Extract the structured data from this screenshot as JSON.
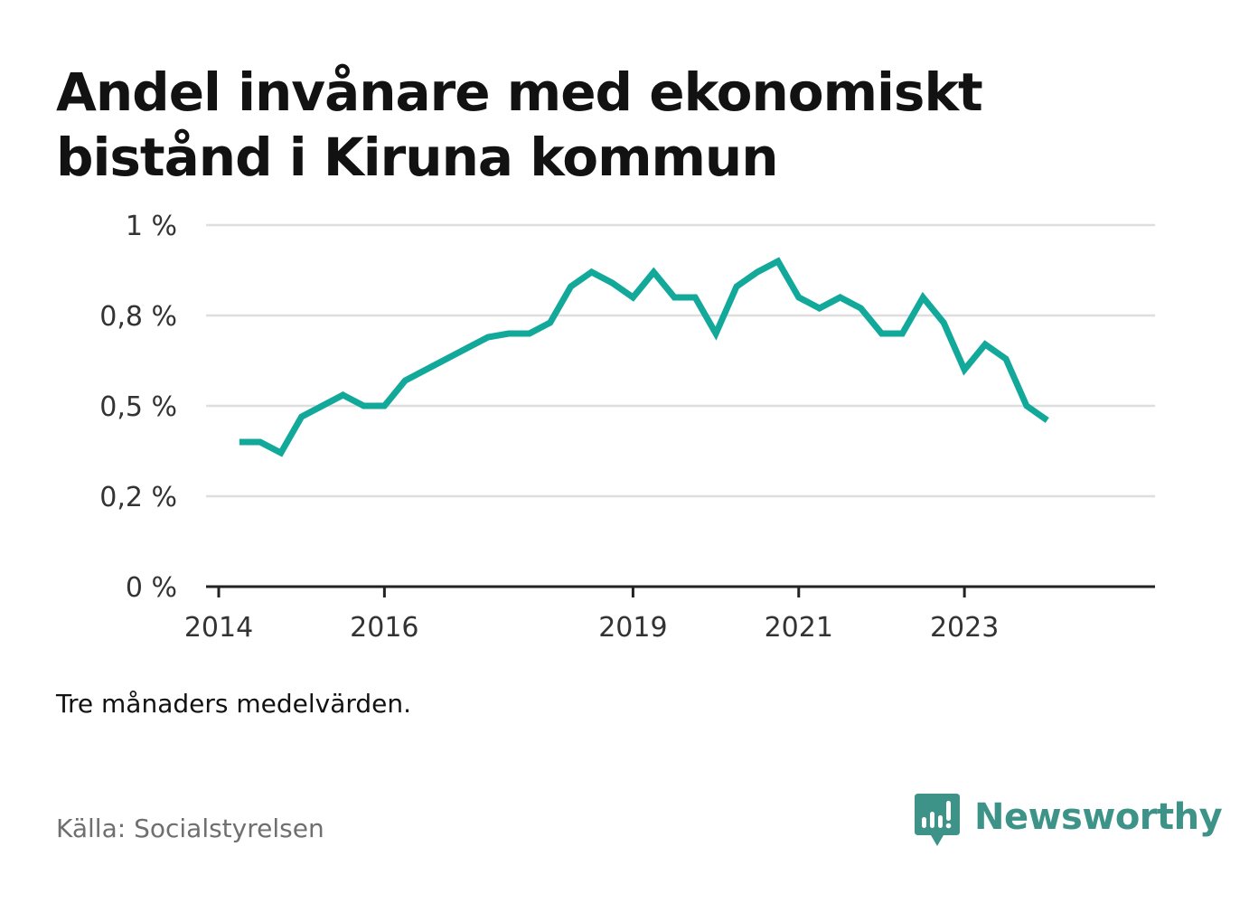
{
  "title_lines": [
    "Andel invånare med ekonomiskt",
    "bistånd i Kiruna kommun"
  ],
  "note": "Tre månaders medelvärden.",
  "source": "Källa: Socialstyrelsen",
  "brand": {
    "name": "Newsworthy",
    "icon": "newsworthy-logo-icon",
    "color": "#3e9389"
  },
  "chart_data": {
    "type": "line",
    "title": "Andel invånare med ekonomiskt bistånd i Kiruna kommun",
    "xlabel": "",
    "ylabel": "",
    "ylim": [
      0,
      1.0
    ],
    "grid": true,
    "y_ticks": [
      {
        "value": 0,
        "label": "0 %"
      },
      {
        "value": 0.25,
        "label": "0,2 %"
      },
      {
        "value": 0.5,
        "label": "0,5 %"
      },
      {
        "value": 0.75,
        "label": "0,8 %"
      },
      {
        "value": 1.0,
        "label": "1 %"
      }
    ],
    "x_ticks": [
      {
        "value": 2014.0,
        "label": "2014"
      },
      {
        "value": 2016.0,
        "label": "2016"
      },
      {
        "value": 2019.0,
        "label": "2019"
      },
      {
        "value": 2021.0,
        "label": "2021"
      },
      {
        "value": 2023.0,
        "label": "2023"
      }
    ],
    "xlim": [
      2014.0,
      2025.3
    ],
    "line_color": "#12a89a",
    "series": [
      {
        "values": [
          {
            "x": 2014.25,
            "y": 0.4
          },
          {
            "x": 2014.5,
            "y": 0.4
          },
          {
            "x": 2014.75,
            "y": 0.37
          },
          {
            "x": 2015.0,
            "y": 0.47
          },
          {
            "x": 2015.25,
            "y": 0.5
          },
          {
            "x": 2015.5,
            "y": 0.53
          },
          {
            "x": 2015.75,
            "y": 0.5
          },
          {
            "x": 2016.0,
            "y": 0.5
          },
          {
            "x": 2016.25,
            "y": 0.57
          },
          {
            "x": 2016.5,
            "y": 0.6
          },
          {
            "x": 2016.75,
            "y": 0.63
          },
          {
            "x": 2017.0,
            "y": 0.66
          },
          {
            "x": 2017.25,
            "y": 0.69
          },
          {
            "x": 2017.5,
            "y": 0.7
          },
          {
            "x": 2017.75,
            "y": 0.7
          },
          {
            "x": 2018.0,
            "y": 0.73
          },
          {
            "x": 2018.25,
            "y": 0.83
          },
          {
            "x": 2018.5,
            "y": 0.87
          },
          {
            "x": 2018.75,
            "y": 0.84
          },
          {
            "x": 2019.0,
            "y": 0.8
          },
          {
            "x": 2019.25,
            "y": 0.87
          },
          {
            "x": 2019.5,
            "y": 0.8
          },
          {
            "x": 2019.75,
            "y": 0.8
          },
          {
            "x": 2020.0,
            "y": 0.7
          },
          {
            "x": 2020.25,
            "y": 0.83
          },
          {
            "x": 2020.5,
            "y": 0.87
          },
          {
            "x": 2020.75,
            "y": 0.9
          },
          {
            "x": 2021.0,
            "y": 0.8
          },
          {
            "x": 2021.25,
            "y": 0.77
          },
          {
            "x": 2021.5,
            "y": 0.8
          },
          {
            "x": 2021.75,
            "y": 0.77
          },
          {
            "x": 2022.0,
            "y": 0.7
          },
          {
            "x": 2022.25,
            "y": 0.7
          },
          {
            "x": 2022.5,
            "y": 0.8
          },
          {
            "x": 2022.75,
            "y": 0.73
          },
          {
            "x": 2023.0,
            "y": 0.6
          },
          {
            "x": 2023.25,
            "y": 0.67
          },
          {
            "x": 2023.5,
            "y": 0.63
          },
          {
            "x": 2023.75,
            "y": 0.5
          },
          {
            "x": 2024.0,
            "y": 0.46
          }
        ]
      }
    ]
  }
}
